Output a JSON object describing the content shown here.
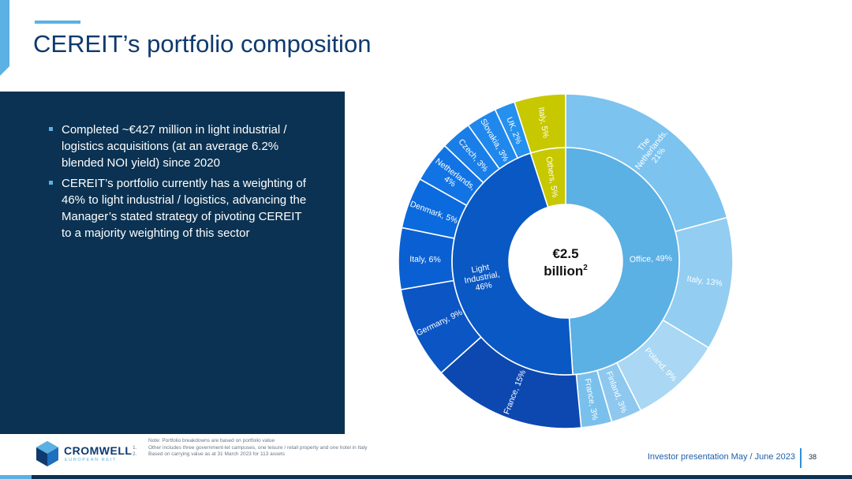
{
  "title": "CEREIT’s portfolio composition",
  "bullets": [
    "Completed ~€427 million in light industrial / logistics acquisitions (at an average 6.2% blended NOI yield) since 2020",
    "CEREIT’s portfolio currently has a weighting of 46% to light industrial / logistics, advancing the Manager’s stated strategy of pivoting CEREIT to a majority weighting of this sector"
  ],
  "chart_data": {
    "type": "pie",
    "center_label": [
      "€2.5",
      "billion"
    ],
    "center_superscript": "2",
    "inner_ring": [
      {
        "label": "Office, 49%",
        "value": 49,
        "color": "#5bb0e4"
      },
      {
        "label": "Light Industrial, 46%",
        "lines": [
          "Light",
          "Industrial,",
          "46%"
        ],
        "value": 46,
        "color": "#0958c4"
      },
      {
        "label": "Others, 5%",
        "value": 5,
        "color": "#c8c800"
      }
    ],
    "outer_ring": [
      {
        "label": "The Netherlands, 21%",
        "lines": [
          "The",
          "Netherlands,",
          "21%"
        ],
        "value": 21,
        "color": "#7cc3ef"
      },
      {
        "label": "Italy, 13%",
        "value": 13,
        "color": "#93cdf1"
      },
      {
        "label": "Poland, 9%",
        "value": 9,
        "color": "#a9d7f4"
      },
      {
        "label": "Finland, 3%",
        "value": 3,
        "color": "#8ec8ef"
      },
      {
        "label": "France, 3%",
        "value": 3,
        "color": "#7ac0ec"
      },
      {
        "label": "France, 15%",
        "value": 15,
        "color": "#0c48b0"
      },
      {
        "label": "Germany, 9%",
        "value": 9,
        "color": "#0b55c4"
      },
      {
        "label": "Italy, 6%",
        "value": 6,
        "color": "#0a60d2"
      },
      {
        "label": "Denmark, 5%",
        "value": 5,
        "color": "#0b6add"
      },
      {
        "label": "Netherlands, 4%",
        "lines": [
          "Netherlands,",
          "4%"
        ],
        "value": 4,
        "color": "#1274e4"
      },
      {
        "label": "Czech, 3%",
        "value": 3,
        "color": "#1a7ee8"
      },
      {
        "label": "Slovakia, 3%",
        "value": 3,
        "color": "#2088ec"
      },
      {
        "label": "UK, 2%",
        "value": 2,
        "color": "#2590ee"
      },
      {
        "label": "Italy, 5%",
        "value": 5,
        "color": "#c8c800"
      }
    ]
  },
  "notes": [
    {
      "num": "",
      "text": "Note: Portfolio breakdowns are based on portfolio value"
    },
    {
      "num": "1.",
      "text": "Other includes three government-let campuses, one leisure / retail property and one hotel in Italy"
    },
    {
      "num": "2.",
      "text": "Based on carrying value as at 31 March 2023 for 113 assets"
    }
  ],
  "logo": {
    "name": "CROMWELL",
    "sub": "EUROPEAN REIT"
  },
  "footer": {
    "presentation": "Investor presentation May / June 2023",
    "page": "38"
  },
  "colors": {
    "navy": "#0b3252",
    "accent": "#5bb0e4",
    "title": "#0e3a6e"
  }
}
